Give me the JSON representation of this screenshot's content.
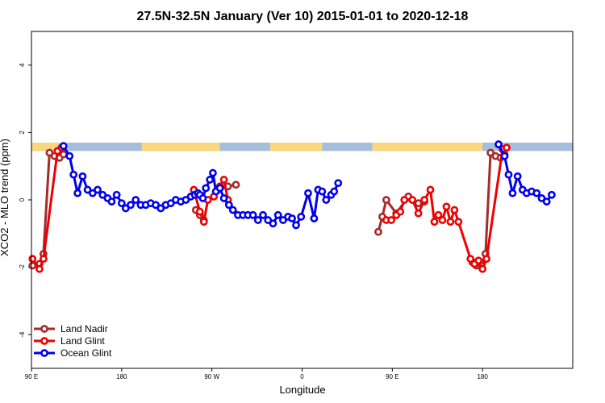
{
  "chart_data": {
    "type": "line",
    "title": "27.5N-32.5N January (Ver 10)   2015-01-01 to 2020-12-18",
    "xlabel": "Longitude",
    "ylabel": "XCO2 - MLO trend (ppm)",
    "xlim": [
      -90,
      180
    ],
    "ylim": [
      -5,
      5
    ],
    "x_ticks": [
      {
        "value": -90,
        "label": "90 E"
      },
      {
        "value": -45,
        "label": "180"
      },
      {
        "value": 0,
        "label": "90 W"
      },
      {
        "value": 45,
        "label": "0"
      },
      {
        "value": 90,
        "label": "90 E"
      },
      {
        "value": 135,
        "label": "180"
      }
    ],
    "y_ticks": [
      -4,
      -2,
      0,
      2,
      4
    ],
    "grid": false,
    "legend_position": "bottom-left",
    "land_ocean_band": {
      "y_range": [
        1.45,
        1.7
      ],
      "land_color": "#f9d77e",
      "ocean_color": "#a4bedc",
      "land_segments": [
        [
          -90,
          -72
        ],
        [
          -35,
          4
        ],
        [
          29,
          55
        ],
        [
          80,
          135
        ]
      ]
    },
    "series": [
      {
        "name": "Land Nadir",
        "color": "#a52a2a",
        "segments": [
          [
            [
              -89.5,
              -1.95
            ],
            [
              -86,
              -1.9
            ],
            [
              -84,
              -1.6
            ],
            [
              -81,
              1.4
            ],
            [
              -78.5,
              1.3
            ],
            [
              -76,
              1.25
            ],
            [
              -74,
              1.35
            ]
          ],
          [
            [
              -8,
              -0.3
            ],
            [
              -6,
              -0.45
            ],
            [
              -4,
              -0.6
            ]
          ],
          [
            [
              3,
              0.3
            ],
            [
              8,
              0.4
            ],
            [
              12,
              0.45
            ]
          ],
          [
            [
              83,
              -0.95
            ],
            [
              85,
              -0.5
            ],
            [
              87,
              0
            ],
            [
              92,
              -0.4
            ],
            [
              98,
              0.1
            ],
            [
              103,
              -0.1
            ],
            [
              106,
              -0.05
            ]
          ],
          [
            [
              130,
              -1.85
            ],
            [
              132,
              -1.95
            ],
            [
              134.5,
              -1.95
            ],
            [
              136.5,
              -1.6
            ],
            [
              139,
              1.4
            ],
            [
              141.5,
              1.3
            ],
            [
              144,
              1.25
            ],
            [
              146,
              1.35
            ]
          ]
        ]
      },
      {
        "name": "Land Glint",
        "color": "#ee0000",
        "segments": [
          [
            [
              -89.5,
              -1.75
            ],
            [
              -86,
              -2.05
            ],
            [
              -84,
              -1.75
            ],
            [
              -77,
              1.45
            ],
            [
              -75,
              1.55
            ]
          ],
          [
            [
              -9,
              0.3
            ],
            [
              -6,
              -0.35
            ],
            [
              -4,
              -0.65
            ],
            [
              -2,
              0
            ],
            [
              1,
              0.1
            ],
            [
              4,
              0.4
            ],
            [
              6,
              0.6
            ],
            [
              8,
              0
            ]
          ],
          [
            [
              87,
              -0.6
            ],
            [
              89.5,
              -0.6
            ],
            [
              92,
              -0.45
            ],
            [
              94,
              -0.35
            ],
            [
              96,
              0
            ],
            [
              100,
              0
            ],
            [
              103,
              -0.4
            ],
            [
              106,
              0
            ],
            [
              109,
              0.3
            ],
            [
              111,
              -0.65
            ],
            [
              113,
              -0.45
            ],
            [
              115,
              -0.6
            ],
            [
              117,
              -0.2
            ],
            [
              119,
              -0.65
            ],
            [
              121,
              -0.3
            ],
            [
              123,
              -0.65
            ],
            [
              129,
              -1.75
            ],
            [
              131,
              -1.9
            ],
            [
              133,
              -1.8
            ],
            [
              135,
              -2.05
            ],
            [
              137,
              -1.75
            ],
            [
              145,
              1.5
            ],
            [
              147,
              1.55
            ]
          ]
        ]
      },
      {
        "name": "Ocean Glint",
        "color": "#0000ee",
        "segments": [
          [
            [
              -74,
              1.6
            ],
            [
              -71,
              1.3
            ],
            [
              -69,
              0.75
            ],
            [
              -67,
              0.2
            ],
            [
              -64.5,
              0.7
            ],
            [
              -62,
              0.3
            ],
            [
              -59.5,
              0.2
            ],
            [
              -57,
              0.3
            ],
            [
              -54.5,
              0.15
            ],
            [
              -52,
              0.05
            ],
            [
              -50,
              -0.05
            ],
            [
              -47.5,
              0.15
            ],
            [
              -45,
              -0.1
            ],
            [
              -43,
              -0.25
            ],
            [
              -40.5,
              -0.15
            ],
            [
              -38,
              0
            ],
            [
              -35.5,
              -0.15
            ],
            [
              -33,
              -0.15
            ],
            [
              -30.5,
              -0.1
            ],
            [
              -28,
              -0.15
            ],
            [
              -25.5,
              -0.25
            ],
            [
              -23,
              -0.15
            ],
            [
              -20.5,
              -0.1
            ],
            [
              -18,
              0
            ],
            [
              -15.5,
              -0.05
            ],
            [
              -13,
              0
            ],
            [
              -10.5,
              0.1
            ],
            [
              -8.5,
              0.15
            ],
            [
              -7,
              0.2
            ],
            [
              -6,
              0.15
            ],
            [
              -4.5,
              0.05
            ],
            [
              -3,
              0.35
            ],
            [
              -1,
              0.6
            ],
            [
              0.5,
              0.8
            ],
            [
              2,
              0.25
            ],
            [
              4,
              0.35
            ],
            [
              6,
              0.05
            ],
            [
              8.5,
              -0.15
            ],
            [
              10.5,
              -0.3
            ],
            [
              13,
              -0.45
            ],
            [
              15.5,
              -0.45
            ],
            [
              18,
              -0.45
            ],
            [
              20.5,
              -0.45
            ],
            [
              23,
              -0.6
            ],
            [
              25.5,
              -0.45
            ],
            [
              28,
              -0.6
            ],
            [
              30.5,
              -0.7
            ],
            [
              33,
              -0.45
            ],
            [
              35.5,
              -0.6
            ],
            [
              38,
              -0.5
            ],
            [
              40,
              -0.55
            ],
            [
              42,
              -0.75
            ],
            [
              44.5,
              -0.5
            ],
            [
              48,
              0.2
            ],
            [
              51,
              -0.55
            ],
            [
              53,
              0.3
            ],
            [
              55,
              0.25
            ],
            [
              57,
              0
            ],
            [
              59.5,
              0.15
            ],
            [
              61,
              0.25
            ],
            [
              63,
              0.5
            ]
          ],
          [
            [
              143,
              1.65
            ],
            [
              146,
              1.3
            ],
            [
              148,
              0.75
            ],
            [
              150,
              0.2
            ],
            [
              152.5,
              0.7
            ],
            [
              155,
              0.3
            ],
            [
              157,
              0.2
            ],
            [
              159.5,
              0.25
            ],
            [
              162,
              0.2
            ],
            [
              164.5,
              0.05
            ],
            [
              167,
              -0.05
            ],
            [
              169.5,
              0.15
            ]
          ]
        ]
      }
    ]
  }
}
